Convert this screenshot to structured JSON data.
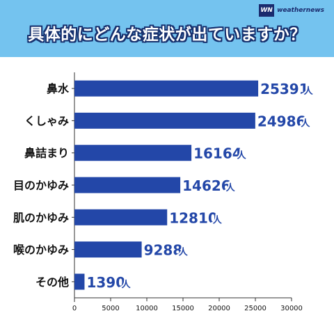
{
  "header": {
    "title": "具体的にどんな症状が出ていますか？",
    "logo_mark": "WN",
    "logo_text": "weathernews"
  },
  "colors": {
    "header_bg": "#74c3ef",
    "bar": "#2347a8",
    "title_outline": "#16306e"
  },
  "chart_data": {
    "type": "bar",
    "orientation": "horizontal",
    "title": "具体的にどんな症状が出ていますか？",
    "categories": [
      "鼻水",
      "くしゃみ",
      "鼻詰まり",
      "目のかゆみ",
      "肌のかゆみ",
      "喉のかゆみ",
      "その他"
    ],
    "values": [
      25391,
      24986,
      16164,
      14626,
      12810,
      9288,
      1390
    ],
    "value_unit": "人",
    "xlim": [
      0,
      30000
    ],
    "xticks": [
      0,
      5000,
      10000,
      15000,
      20000,
      25000,
      30000
    ],
    "grid": false,
    "legend": "none"
  }
}
